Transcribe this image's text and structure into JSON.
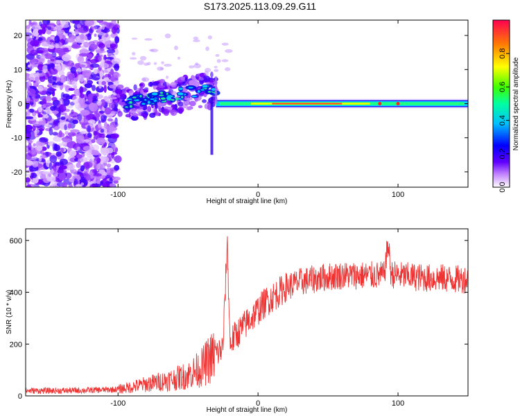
{
  "title": "S173.2025.113.09.29.G11",
  "chart_data": [
    {
      "type": "heatmap",
      "xlabel": "Height of straight line (km)",
      "ylabel": "Frequency (Hz)",
      "xlim": [
        -166,
        150
      ],
      "ylim": [
        -24.5,
        24.5
      ],
      "xticks": [
        -100,
        0,
        100
      ],
      "yticks": [
        -20,
        -10,
        0,
        10,
        20
      ],
      "colorbar": {
        "label": "Normalized spectral amplitude",
        "range": [
          0,
          1
        ],
        "ticks": [
          0.0,
          0.2,
          0.4,
          0.6,
          0.8
        ],
        "colors": [
          "#ffffff",
          "#8000ff",
          "#0000ff",
          "#00ffff",
          "#00ff00",
          "#ffff00",
          "#ff8000",
          "#ff0040"
        ]
      },
      "features": {
        "noise_region_x": [
          -166,
          -100
        ],
        "carrier_start_x": -30,
        "carrier_frequency_hz": 0
      }
    },
    {
      "type": "line",
      "xlabel": "Height of straight line (km)",
      "ylabel": "SNR (10 * v/v)",
      "xlim": [
        -166,
        150
      ],
      "ylim": [
        0,
        645
      ],
      "xticks": [
        -100,
        0,
        100
      ],
      "yticks": [
        0,
        200,
        400,
        600
      ],
      "color": "#ee3333",
      "series": [
        {
          "x": [
            -166,
            -140,
            -120,
            -100,
            -90,
            -80,
            -70,
            -60,
            -50,
            -45,
            -40,
            -35,
            -30,
            -25,
            -22,
            -20,
            -18,
            -15,
            -10,
            -5,
            0,
            5,
            10,
            15,
            20,
            25,
            30,
            40,
            50,
            60,
            70,
            80,
            90,
            93,
            95,
            100,
            110,
            120,
            130,
            140,
            150
          ],
          "y": [
            20,
            20,
            22,
            25,
            35,
            45,
            55,
            65,
            80,
            95,
            110,
            140,
            160,
            185,
            600,
            200,
            220,
            240,
            270,
            300,
            330,
            360,
            380,
            400,
            420,
            430,
            440,
            450,
            460,
            465,
            465,
            465,
            465,
            590,
            470,
            465,
            460,
            455,
            455,
            450,
            450
          ]
        }
      ]
    }
  ]
}
